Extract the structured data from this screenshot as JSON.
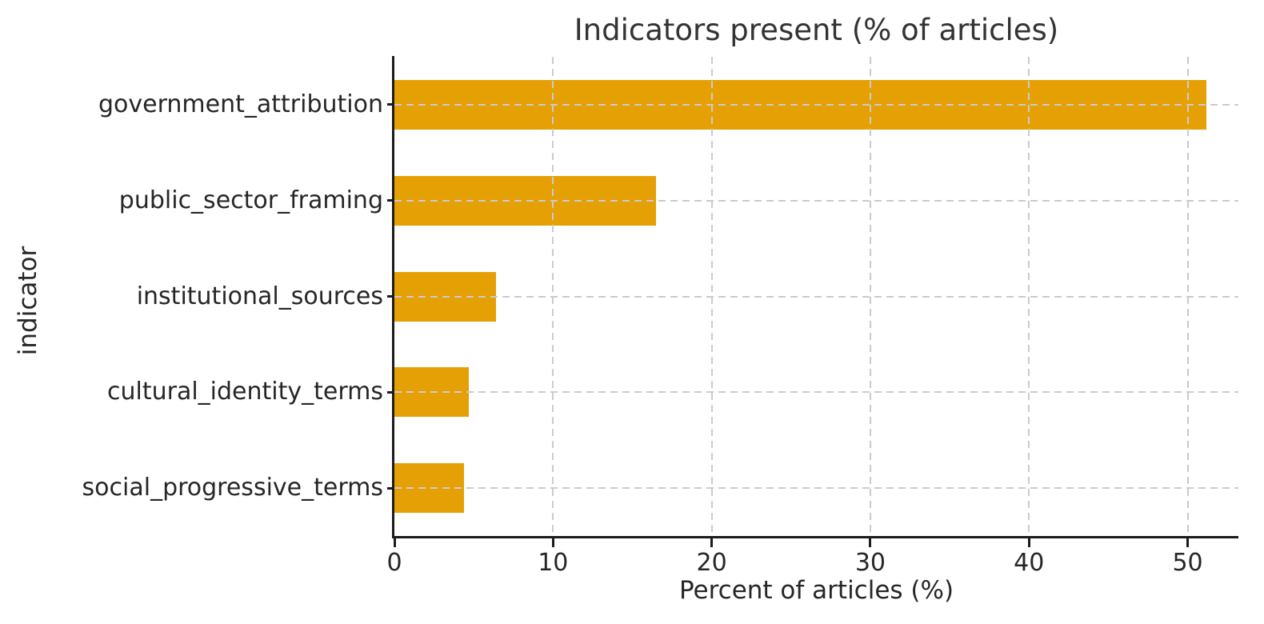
{
  "chart_data": {
    "type": "bar",
    "orientation": "horizontal",
    "title": "Indicators present (% of articles)",
    "xlabel": "Percent of articles (%)",
    "ylabel": "indicator",
    "categories": [
      "government_attribution",
      "public_sector_framing",
      "institutional_sources",
      "cultural_identity_terms",
      "social_progressive_terms"
    ],
    "values": [
      51.2,
      16.5,
      6.4,
      4.7,
      4.4
    ],
    "x_ticks": [
      0,
      10,
      20,
      30,
      40,
      50
    ],
    "xlim": [
      0,
      53.2
    ],
    "grid": "dashed, drawn on top of bars",
    "legend_position": "none",
    "bar_color": "#E4A005",
    "grid_color": "#cbcbcb",
    "spine_color": "#1c1c1c",
    "text_color": "#262626"
  }
}
